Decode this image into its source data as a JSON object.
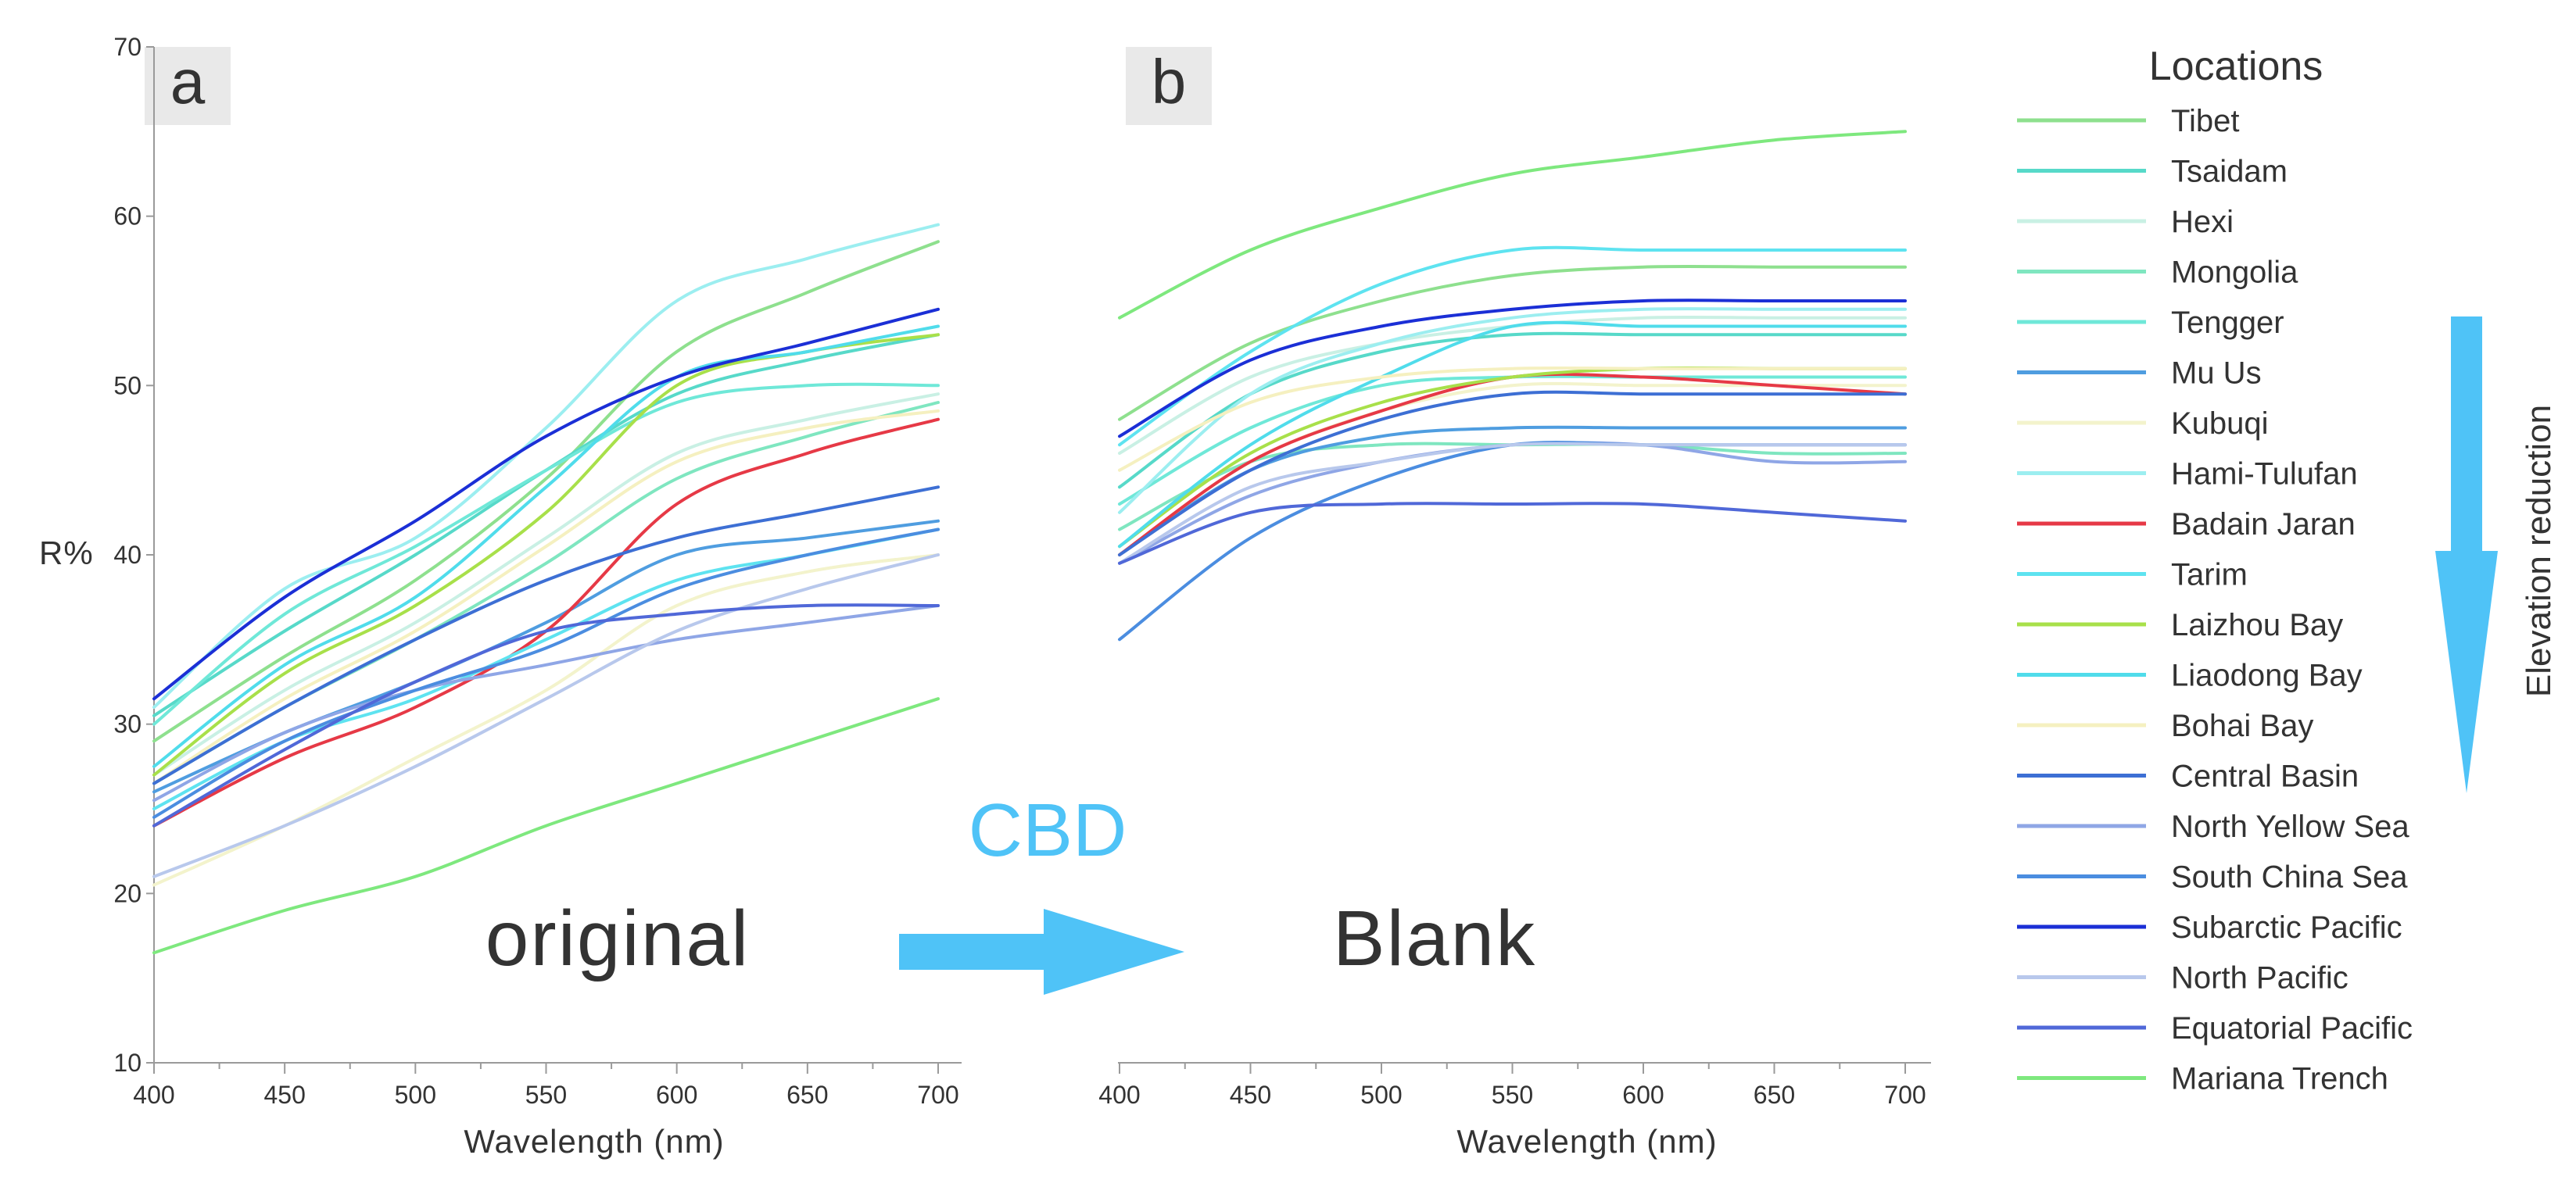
{
  "chart_data": [
    {
      "type": "line",
      "panel_label": "a",
      "ylabel": "R%",
      "xlabel": "Wavelength (nm)",
      "xlim": [
        400,
        700
      ],
      "ylim": [
        10,
        70
      ],
      "xticks": [
        "400",
        "450",
        "500",
        "550",
        "600",
        "650",
        "700"
      ],
      "yticks": [
        "10",
        "20",
        "30",
        "40",
        "50",
        "60",
        "70"
      ],
      "annotation": "original",
      "x": [
        400,
        450,
        500,
        550,
        600,
        650,
        700
      ],
      "series": [
        {
          "name": "Tibet",
          "color": "#8ee08e",
          "values": [
            29.0,
            34.0,
            38.5,
            44.5,
            52.0,
            55.5,
            58.5
          ]
        },
        {
          "name": "Tsaidam",
          "color": "#57d9c9",
          "values": [
            30.5,
            35.5,
            40.0,
            45.0,
            49.5,
            51.5,
            53.0
          ]
        },
        {
          "name": "Hexi",
          "color": "#c9f0e4",
          "values": [
            27.0,
            32.0,
            36.0,
            41.0,
            46.0,
            48.0,
            49.5
          ]
        },
        {
          "name": "Mongolia",
          "color": "#7fe6c0",
          "values": [
            26.5,
            31.0,
            35.0,
            39.5,
            44.5,
            47.0,
            49.0
          ]
        },
        {
          "name": "Tengger",
          "color": "#6fe8d8",
          "values": [
            30.0,
            36.5,
            40.5,
            45.0,
            49.0,
            50.0,
            50.0
          ]
        },
        {
          "name": "Mu Us",
          "color": "#4f9de0",
          "values": [
            26.0,
            29.5,
            32.5,
            36.0,
            40.0,
            41.0,
            42.0
          ]
        },
        {
          "name": "Kubuqi",
          "color": "#f3f3cc",
          "values": [
            20.5,
            24.0,
            28.0,
            32.0,
            37.0,
            39.0,
            40.0
          ]
        },
        {
          "name": "Hami-Tulufan",
          "color": "#9ceef0",
          "values": [
            31.0,
            38.0,
            41.0,
            47.5,
            55.0,
            57.5,
            59.5
          ]
        },
        {
          "name": "Badain Jaran",
          "color": "#e63946",
          "values": [
            24.0,
            28.0,
            31.0,
            35.5,
            43.0,
            46.0,
            48.0
          ]
        },
        {
          "name": "Tarim",
          "color": "#5ee3f0",
          "values": [
            25.0,
            29.0,
            31.5,
            35.0,
            38.5,
            40.0,
            41.5
          ]
        },
        {
          "name": "Laizhou Bay",
          "color": "#a8e04a",
          "values": [
            27.0,
            33.0,
            37.0,
            42.5,
            50.0,
            52.0,
            53.0
          ]
        },
        {
          "name": "Liaodong Bay",
          "color": "#50dceb",
          "values": [
            27.5,
            33.5,
            37.5,
            44.0,
            50.5,
            52.0,
            53.5
          ]
        },
        {
          "name": "Bohai Bay",
          "color": "#f5f0c0",
          "values": [
            26.5,
            31.5,
            35.5,
            40.5,
            45.5,
            47.5,
            48.5
          ]
        },
        {
          "name": "Central Basin",
          "color": "#3d6fd4",
          "values": [
            26.5,
            31.0,
            35.0,
            38.5,
            41.0,
            42.5,
            44.0
          ]
        },
        {
          "name": "North Yellow Sea",
          "color": "#8fa6e6",
          "values": [
            25.5,
            29.5,
            32.0,
            33.5,
            35.0,
            36.0,
            37.0
          ]
        },
        {
          "name": "South China Sea",
          "color": "#4b8de0",
          "values": [
            24.5,
            29.0,
            32.0,
            34.5,
            38.0,
            40.0,
            41.5
          ]
        },
        {
          "name": "Subarctic Pacific",
          "color": "#1b2fd6",
          "values": [
            31.5,
            37.5,
            42.0,
            47.0,
            50.5,
            52.5,
            54.5
          ]
        },
        {
          "name": "North Pacific",
          "color": "#b8c8ec",
          "values": [
            21.0,
            24.0,
            27.5,
            31.5,
            35.5,
            38.0,
            40.0
          ]
        },
        {
          "name": "Equatorial Pacific",
          "color": "#5068d8",
          "values": [
            24.0,
            28.5,
            32.5,
            35.5,
            36.5,
            37.0,
            37.0
          ]
        },
        {
          "name": "Mariana Trench",
          "color": "#7ee87e",
          "values": [
            16.5,
            19.0,
            21.0,
            24.0,
            26.5,
            29.0,
            31.5
          ]
        }
      ]
    },
    {
      "type": "line",
      "panel_label": "b",
      "xlabel": "Wavelength (nm)",
      "xlim": [
        400,
        700
      ],
      "ylim": [
        10,
        70
      ],
      "xticks": [
        "400",
        "450",
        "500",
        "550",
        "600",
        "650",
        "700"
      ],
      "annotation": "Blank",
      "x": [
        400,
        450,
        500,
        550,
        600,
        650,
        700
      ],
      "series": [
        {
          "name": "Tibet",
          "color": "#8ee08e",
          "values": [
            48.0,
            52.5,
            55.0,
            56.5,
            57.0,
            57.0,
            57.0
          ]
        },
        {
          "name": "Tsaidam",
          "color": "#57d9c9",
          "values": [
            44.0,
            49.5,
            52.0,
            53.0,
            53.0,
            53.0,
            53.0
          ]
        },
        {
          "name": "Hexi",
          "color": "#c9f0e4",
          "values": [
            46.0,
            50.5,
            52.5,
            53.5,
            54.0,
            54.0,
            54.0
          ]
        },
        {
          "name": "Mongolia",
          "color": "#7fe6c0",
          "values": [
            41.5,
            45.5,
            46.5,
            46.5,
            46.5,
            46.0,
            46.0
          ]
        },
        {
          "name": "Tengger",
          "color": "#6fe8d8",
          "values": [
            43.0,
            47.5,
            50.0,
            50.5,
            50.5,
            50.5,
            50.5
          ]
        },
        {
          "name": "Mu Us",
          "color": "#4f9de0",
          "values": [
            40.0,
            45.0,
            47.0,
            47.5,
            47.5,
            47.5,
            47.5
          ]
        },
        {
          "name": "Kubuqi",
          "color": "#f3f3cc",
          "values": [
            40.0,
            45.5,
            48.5,
            50.0,
            50.0,
            50.0,
            50.0
          ]
        },
        {
          "name": "Hami-Tulufan",
          "color": "#9ceef0",
          "values": [
            42.5,
            49.5,
            52.5,
            54.0,
            54.5,
            54.5,
            54.5
          ]
        },
        {
          "name": "Badain Jaran",
          "color": "#e63946",
          "values": [
            40.0,
            45.5,
            48.5,
            50.5,
            50.5,
            50.0,
            49.5
          ]
        },
        {
          "name": "Tarim",
          "color": "#5ee3f0",
          "values": [
            46.5,
            52.0,
            56.0,
            58.0,
            58.0,
            58.0,
            58.0
          ]
        },
        {
          "name": "Laizhou Bay",
          "color": "#a8e04a",
          "values": [
            40.5,
            46.0,
            49.0,
            50.5,
            51.0,
            51.0,
            51.0
          ]
        },
        {
          "name": "Liaodong Bay",
          "color": "#50dceb",
          "values": [
            40.5,
            46.5,
            50.5,
            53.5,
            53.5,
            53.5,
            53.5
          ]
        },
        {
          "name": "Bohai Bay",
          "color": "#f5f0c0",
          "values": [
            45.0,
            49.0,
            50.5,
            51.0,
            51.0,
            51.0,
            51.0
          ]
        },
        {
          "name": "Central Basin",
          "color": "#3d6fd4",
          "values": [
            40.0,
            45.0,
            48.0,
            49.5,
            49.5,
            49.5,
            49.5
          ]
        },
        {
          "name": "North Yellow Sea",
          "color": "#8fa6e6",
          "values": [
            39.5,
            43.5,
            45.5,
            46.5,
            46.5,
            45.5,
            45.5
          ]
        },
        {
          "name": "South China Sea",
          "color": "#4b8de0",
          "values": [
            35.0,
            41.0,
            44.5,
            46.5,
            46.5,
            46.5,
            46.5
          ]
        },
        {
          "name": "Subarctic Pacific",
          "color": "#1b2fd6",
          "values": [
            47.0,
            51.5,
            53.5,
            54.5,
            55.0,
            55.0,
            55.0
          ]
        },
        {
          "name": "North Pacific",
          "color": "#b8c8ec",
          "values": [
            39.5,
            44.0,
            45.5,
            46.5,
            46.5,
            46.5,
            46.5
          ]
        },
        {
          "name": "Equatorial Pacific",
          "color": "#5068d8",
          "values": [
            39.5,
            42.5,
            43.0,
            43.0,
            43.0,
            42.5,
            42.0
          ]
        },
        {
          "name": "Mariana Trench",
          "color": "#7ee87e",
          "values": [
            54.0,
            58.0,
            60.5,
            62.5,
            63.5,
            64.5,
            65.0
          ]
        }
      ]
    }
  ],
  "transition": {
    "label": "CBD",
    "color": "#4fc3f7"
  },
  "legend": {
    "title": "Locations",
    "note": "Elevation reduction",
    "entries": [
      "Tibet",
      "Tsaidam",
      "Hexi",
      "Mongolia",
      "Tengger",
      "Mu Us",
      "Kubuqi",
      "Hami-Tulufan",
      "Badain Jaran",
      "Tarim",
      "Laizhou Bay",
      "Liaodong Bay",
      "Bohai Bay",
      "Central Basin",
      "North Yellow Sea",
      "South China Sea",
      "Subarctic Pacific",
      "North Pacific",
      "Equatorial Pacific",
      "Mariana Trench"
    ]
  }
}
